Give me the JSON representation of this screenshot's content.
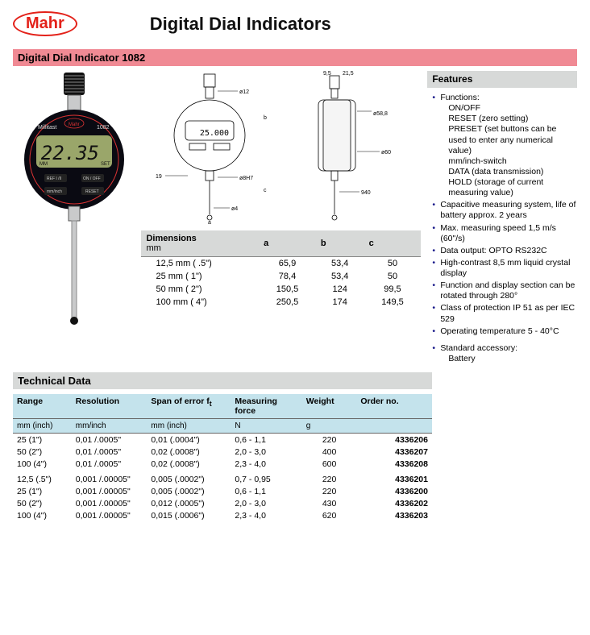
{
  "brand": "Mahr",
  "page_title": "Digital Dial Indicators",
  "subtitle": "Digital Dial Indicator 1082",
  "colors": {
    "brand_red": "#e32119",
    "sub_bar_bg": "#f08a94",
    "gray_bar_bg": "#d7d9d8",
    "tech_header_bg": "#c4e3ec",
    "bullet_color": "#1a1a8a"
  },
  "product_display": {
    "brand_label": "Millitast",
    "model_label": "1082",
    "lcd_value": "22.35",
    "lcd_mm": "MM",
    "lcd_set": "SET",
    "btn_ref": "REF I /II",
    "btn_onoff": "ON / OFF",
    "btn_mminch": "mm/inch",
    "btn_reset": "RESET"
  },
  "schematic": {
    "lcd_value": "25.000",
    "dims": {
      "d12": "ø12",
      "d8H7": "ø8H7",
      "d4": "ø4",
      "t19": "19",
      "t9_5": "9,5",
      "t21_5": "21,5",
      "d58_8": "ø58,8",
      "d60": "ø60",
      "a": "a",
      "b": "b",
      "c": "c",
      "n940": "940"
    }
  },
  "dimensions_table": {
    "title": "Dimensions",
    "unit": "mm",
    "cols": [
      "a",
      "b",
      "c"
    ],
    "rows": [
      {
        "label": "12,5 mm ( .5\")",
        "a": "65,9",
        "b": "53,4",
        "c": "50"
      },
      {
        "label": "25 mm ( 1\")",
        "a": "78,4",
        "b": "53,4",
        "c": "50"
      },
      {
        "label": "50 mm ( 2\")",
        "a": "150,5",
        "b": "124",
        "c": "99,5"
      },
      {
        "label": "100 mm ( 4\")",
        "a": "250,5",
        "b": "174",
        "c": "149,5"
      }
    ]
  },
  "features": {
    "title": "Features",
    "items": [
      {
        "text": "Functions:",
        "sub": [
          "ON/OFF",
          "RESET (zero setting)",
          "PRESET (set buttons can be used to enter any numerical value)",
          "mm/inch-switch",
          "DATA (data transmission)",
          "HOLD (storage of current measuring value)"
        ]
      },
      {
        "text": "Capacitive measuring system, life of battery approx. 2 years"
      },
      {
        "text": "Max. measuring speed 1,5 m/s (60\"/s)"
      },
      {
        "text": "Data output: OPTO RS232C"
      },
      {
        "text": "High-contrast 8,5 mm liquid crystal display"
      },
      {
        "text": "Function and display section can be rotated through 280°"
      },
      {
        "text": "Class of protection IP 51 as per IEC 529"
      },
      {
        "text": "Operating temperature 5 - 40°C"
      }
    ],
    "accessory_label": "Standard accessory:",
    "accessory_value": "Battery"
  },
  "technical": {
    "title": "Technical Data",
    "headers": {
      "range": "Range",
      "range_sub": "mm (inch)",
      "resolution": "Resolution",
      "resolution_sub": "mm/inch",
      "span": "Span of error f",
      "span_sub": "mm (inch)",
      "span_sym": "t",
      "force": "Measuring force",
      "force_sub": "N",
      "weight": "Weight",
      "weight_sub": "g",
      "order": "Order no."
    },
    "group1": [
      {
        "range": "25 (1\")",
        "res": "0,01 /.0005\"",
        "span": "0,01 (.0004\")",
        "force": "0,6  - 1,1",
        "weight": "220",
        "order": "4336206"
      },
      {
        "range": "50 (2\")",
        "res": "0,01 /.0005\"",
        "span": "0,02 (.0008\")",
        "force": "2,0  - 3,0",
        "weight": "400",
        "order": "4336207"
      },
      {
        "range": "100 (4\")",
        "res": "0,01 /.0005\"",
        "span": "0,02 (.0008\")",
        "force": "2,3  - 4,0",
        "weight": "600",
        "order": "4336208"
      }
    ],
    "group2": [
      {
        "range": "12,5 (.5\")",
        "res": "0,001 /.00005\"",
        "span": "0,005 (.0002\")",
        "force": "0,7  - 0,95",
        "weight": "220",
        "order": "4336201"
      },
      {
        "range": "25 (1\")",
        "res": "0,001 /.00005\"",
        "span": "0,005 (.0002\")",
        "force": "0,6  - 1,1",
        "weight": "220",
        "order": "4336200"
      },
      {
        "range": "50 (2\")",
        "res": "0,001 /.00005\"",
        "span": "0,012 (.0005\")",
        "force": "2,0  - 3,0",
        "weight": "430",
        "order": "4336202"
      },
      {
        "range": "100 (4\")",
        "res": "0,001 /.00005\"",
        "span": "0,015 (.0006\")",
        "force": "2,3  - 4,0",
        "weight": "620",
        "order": "4336203"
      }
    ]
  }
}
